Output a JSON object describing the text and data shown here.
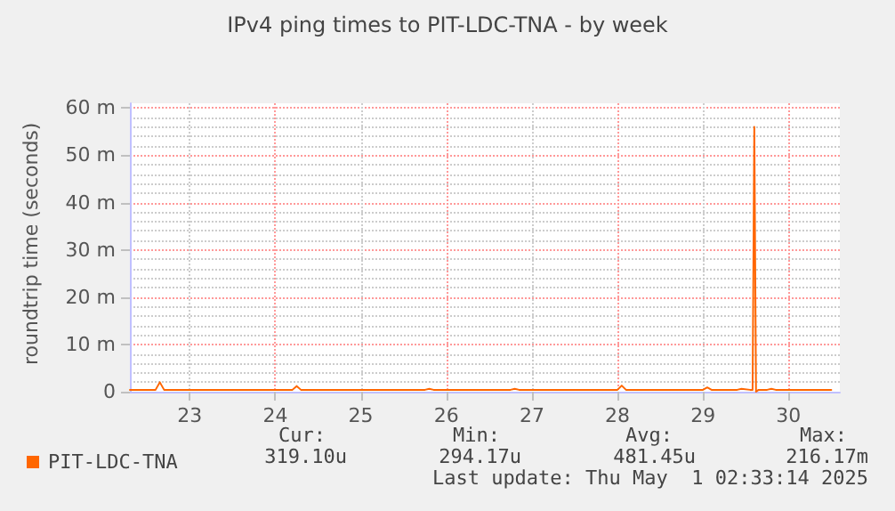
{
  "chart_data": {
    "type": "line",
    "title": "IPv4 ping times to PIT-LDC-TNA - by week",
    "ylabel": "roundtrip time (seconds)",
    "xlim": [
      22.3,
      30.6
    ],
    "xticks": [
      23,
      24,
      25,
      26,
      27,
      28,
      29,
      30
    ],
    "ylim": [
      0,
      61
    ],
    "yticks": [
      0,
      {
        "value": 10,
        "label": "10 m"
      },
      {
        "value": 20,
        "label": "20 m"
      },
      {
        "value": 30,
        "label": "30 m"
      },
      {
        "value": 40,
        "label": "40 m"
      },
      {
        "value": 50,
        "label": "50 m"
      },
      {
        "value": 60,
        "label": "60 m"
      }
    ],
    "grid": true,
    "legend": "bottom left",
    "marker": "none",
    "line_style": "solid",
    "series": [
      {
        "name": "PIT-LDC-TNA",
        "color": "#ff6600",
        "x": [
          22.3,
          22.6,
          22.65,
          22.7,
          24.2,
          24.25,
          24.3,
          25.75,
          25.8,
          25.85,
          26.75,
          26.8,
          26.85,
          28.0,
          28.05,
          28.1,
          29.0,
          29.05,
          29.1,
          29.4,
          29.45,
          29.55,
          29.58,
          29.6,
          29.62,
          29.65,
          29.75,
          29.8,
          29.85,
          30.5
        ],
        "values": [
          0.4,
          0.4,
          2.0,
          0.4,
          0.4,
          1.2,
          0.4,
          0.4,
          0.6,
          0.4,
          0.4,
          0.6,
          0.4,
          0.4,
          1.3,
          0.4,
          0.4,
          0.9,
          0.4,
          0.4,
          0.6,
          0.4,
          0.4,
          56,
          0,
          0.4,
          0.4,
          0.6,
          0.4,
          0.4
        ]
      }
    ],
    "annotations": [
      "Cur:",
      "Min:",
      "Avg:",
      "Max:",
      "319.10u",
      "294.17u",
      "481.45u",
      "216.17m",
      "Last update: Thu May  1 02:33:14 2025"
    ]
  }
}
